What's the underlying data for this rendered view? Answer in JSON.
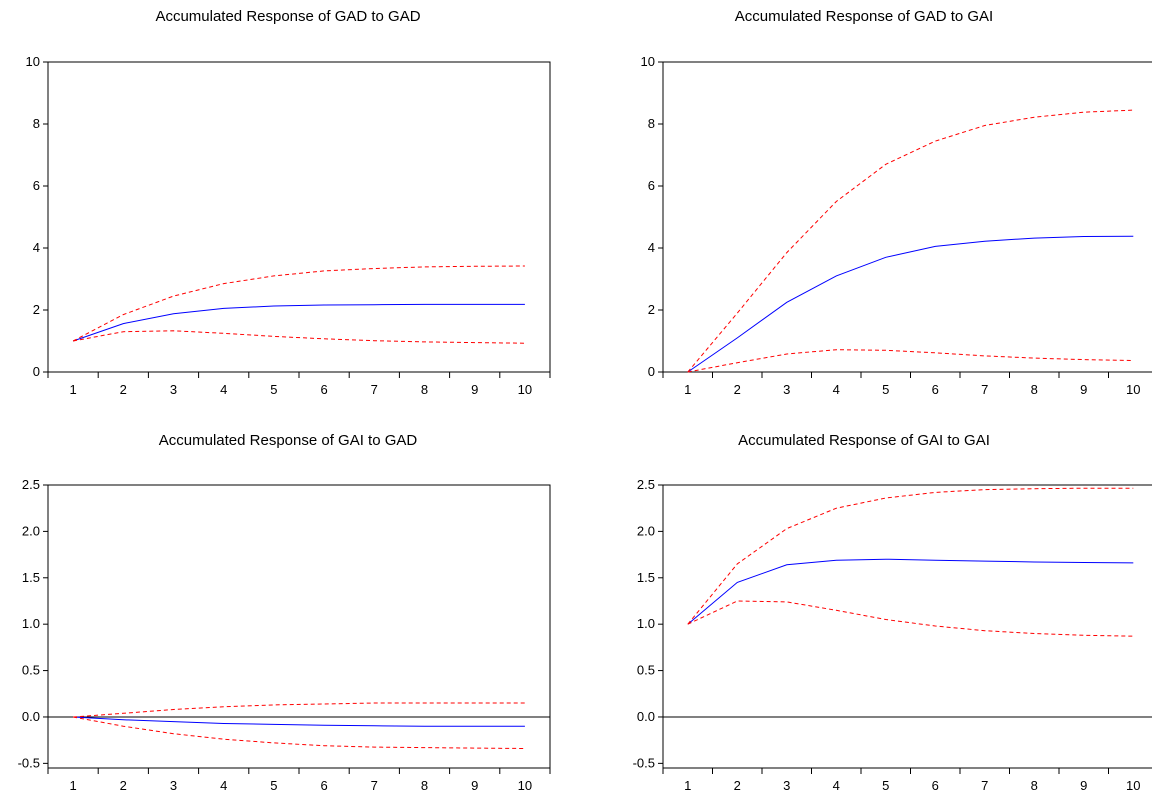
{
  "style": {
    "response_color": "#0000ff",
    "band_color": "#ff0000",
    "axis_color": "#000000"
  },
  "chart_data": [
    {
      "type": "line",
      "title": "Accumulated Response of GAD to GAD",
      "x": [
        1,
        2,
        3,
        4,
        5,
        6,
        7,
        8,
        9,
        10
      ],
      "ylim": [
        0,
        10
      ],
      "yticks": [
        "0",
        "2",
        "4",
        "6",
        "8",
        "10"
      ],
      "yticks_values": [
        0,
        2,
        4,
        6,
        8,
        10
      ],
      "zero_line": false,
      "series": [
        {
          "role": "response",
          "style": "solid",
          "values": [
            1.0,
            1.56,
            1.88,
            2.05,
            2.13,
            2.16,
            2.17,
            2.18,
            2.18,
            2.18
          ]
        },
        {
          "role": "upper",
          "style": "dashed",
          "values": [
            1.0,
            1.85,
            2.45,
            2.85,
            3.1,
            3.26,
            3.34,
            3.39,
            3.41,
            3.42
          ]
        },
        {
          "role": "lower",
          "style": "dashed",
          "values": [
            1.0,
            1.3,
            1.33,
            1.25,
            1.15,
            1.07,
            1.01,
            0.97,
            0.95,
            0.93
          ]
        }
      ]
    },
    {
      "type": "line",
      "title": "Accumulated Response of GAD to GAI",
      "x": [
        1,
        2,
        3,
        4,
        5,
        6,
        7,
        8,
        9,
        10
      ],
      "ylim": [
        0,
        10
      ],
      "yticks": [
        "0",
        "2",
        "4",
        "6",
        "8",
        "10"
      ],
      "yticks_values": [
        0,
        2,
        4,
        6,
        8,
        10
      ],
      "zero_line": false,
      "series": [
        {
          "role": "response",
          "style": "solid",
          "values": [
            0.0,
            1.1,
            2.25,
            3.1,
            3.7,
            4.05,
            4.22,
            4.32,
            4.37,
            4.38
          ]
        },
        {
          "role": "upper",
          "style": "dashed",
          "values": [
            0.0,
            1.9,
            3.85,
            5.5,
            6.7,
            7.45,
            7.95,
            8.22,
            8.38,
            8.45
          ]
        },
        {
          "role": "lower",
          "style": "dashed",
          "values": [
            0.0,
            0.3,
            0.58,
            0.72,
            0.7,
            0.62,
            0.52,
            0.45,
            0.4,
            0.37
          ]
        }
      ]
    },
    {
      "type": "line",
      "title": "Accumulated Response of GAI to GAD",
      "x": [
        1,
        2,
        3,
        4,
        5,
        6,
        7,
        8,
        9,
        10
      ],
      "ylim": [
        -0.55,
        2.5
      ],
      "yticks": [
        "-0.5",
        "0.0",
        "0.5",
        "1.0",
        "1.5",
        "2.0",
        "2.5"
      ],
      "yticks_values": [
        -0.5,
        0,
        0.5,
        1.0,
        1.5,
        2.0,
        2.5
      ],
      "zero_line": true,
      "series": [
        {
          "role": "response",
          "style": "solid",
          "values": [
            0.0,
            -0.03,
            -0.05,
            -0.07,
            -0.08,
            -0.09,
            -0.095,
            -0.1,
            -0.1,
            -0.1
          ]
        },
        {
          "role": "upper",
          "style": "dashed",
          "values": [
            0.0,
            0.04,
            0.08,
            0.11,
            0.13,
            0.14,
            0.15,
            0.15,
            0.15,
            0.15
          ]
        },
        {
          "role": "lower",
          "style": "dashed",
          "values": [
            0.0,
            -0.1,
            -0.18,
            -0.24,
            -0.28,
            -0.31,
            -0.325,
            -0.33,
            -0.335,
            -0.34
          ]
        }
      ]
    },
    {
      "type": "line",
      "title": "Accumulated Response of GAI to GAI",
      "x": [
        1,
        2,
        3,
        4,
        5,
        6,
        7,
        8,
        9,
        10
      ],
      "ylim": [
        -0.55,
        2.5
      ],
      "yticks": [
        "-0.5",
        "0.0",
        "0.5",
        "1.0",
        "1.5",
        "2.0",
        "2.5"
      ],
      "yticks_values": [
        -0.5,
        0,
        0.5,
        1.0,
        1.5,
        2.0,
        2.5
      ],
      "zero_line": true,
      "series": [
        {
          "role": "response",
          "style": "solid",
          "values": [
            1.0,
            1.45,
            1.64,
            1.69,
            1.7,
            1.69,
            1.68,
            1.67,
            1.665,
            1.66
          ]
        },
        {
          "role": "upper",
          "style": "dashed",
          "values": [
            1.0,
            1.65,
            2.03,
            2.25,
            2.36,
            2.42,
            2.45,
            2.46,
            2.465,
            2.465
          ]
        },
        {
          "role": "lower",
          "style": "dashed",
          "values": [
            1.0,
            1.25,
            1.24,
            1.15,
            1.05,
            0.98,
            0.93,
            0.9,
            0.88,
            0.87
          ]
        }
      ]
    }
  ]
}
